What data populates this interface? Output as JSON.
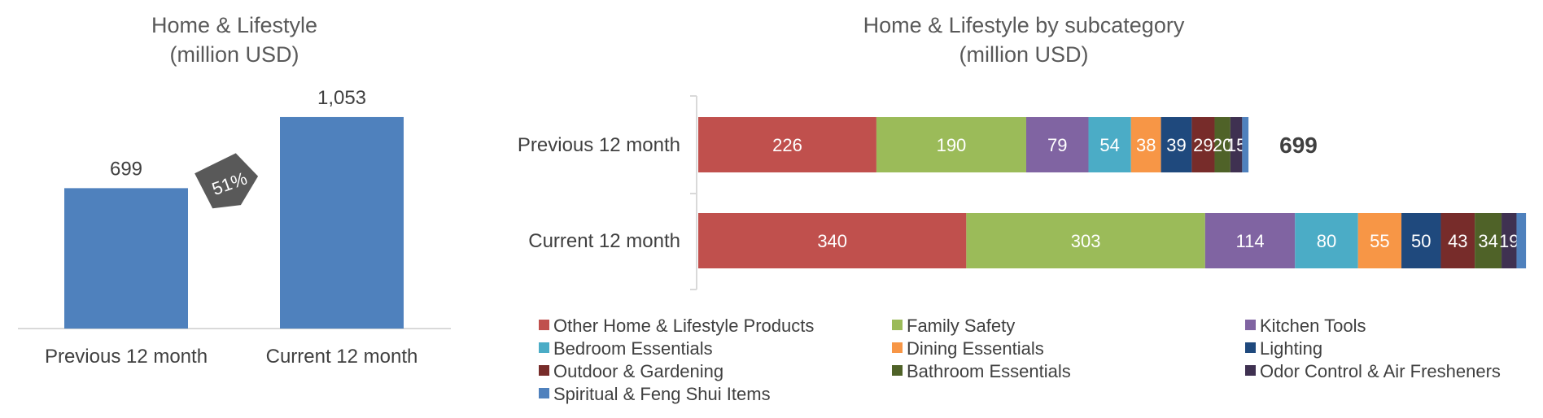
{
  "chart_data": [
    {
      "type": "bar",
      "title": "Home & Lifestyle",
      "subtitle": "(million USD)",
      "categories": [
        "Previous 12 month",
        "Current 12 month"
      ],
      "values": [
        699,
        1053
      ],
      "value_labels": [
        "699",
        "1,053"
      ],
      "growth_label": "51%",
      "ylim": [
        0,
        1150
      ],
      "color": "#4f81bd",
      "grid": false
    },
    {
      "type": "bar",
      "orientation": "horizontal",
      "stacked": true,
      "title": "Home & Lifestyle by subcategory",
      "subtitle": "(million USD)",
      "categories": [
        "Previous 12 month",
        "Current 12 month"
      ],
      "totals": [
        699,
        ""
      ],
      "xlim": [
        0,
        1053
      ],
      "legend_position": "bottom",
      "series": [
        {
          "name": "Other Home & Lifestyle Products",
          "color": "#c0504d",
          "values": [
            226,
            340
          ]
        },
        {
          "name": "Family Safety",
          "color": "#9bbb59",
          "values": [
            190,
            303
          ]
        },
        {
          "name": "Kitchen Tools",
          "color": "#8064a2",
          "values": [
            79,
            114
          ]
        },
        {
          "name": "Bedroom Essentials",
          "color": "#4bacc6",
          "values": [
            54,
            80
          ]
        },
        {
          "name": "Dining Essentials",
          "color": "#f79646",
          "values": [
            38,
            55
          ]
        },
        {
          "name": "Lighting",
          "color": "#1f497d",
          "values": [
            39,
            50
          ]
        },
        {
          "name": "Outdoor & Gardening",
          "color": "#772c2a",
          "values": [
            29,
            43
          ]
        },
        {
          "name": "Bathroom Essentials",
          "color": "#4f6228",
          "values": [
            20,
            34
          ]
        },
        {
          "name": "Odor Control & Air Fresheners",
          "color": "#3f3151",
          "values": [
            15,
            19
          ]
        },
        {
          "name": "Spiritual & Feng Shui Items",
          "color": "#4f81bd",
          "values": [
            8,
            12
          ],
          "labels": [
            "",
            ""
          ]
        }
      ],
      "segment_labels": [
        [
          "226",
          "190",
          "79",
          "54",
          "38",
          "39",
          "29",
          "20",
          "15",
          ""
        ],
        [
          "340",
          "303",
          "114",
          "80",
          "55",
          "50",
          "43",
          "34",
          "19",
          ""
        ]
      ]
    }
  ]
}
